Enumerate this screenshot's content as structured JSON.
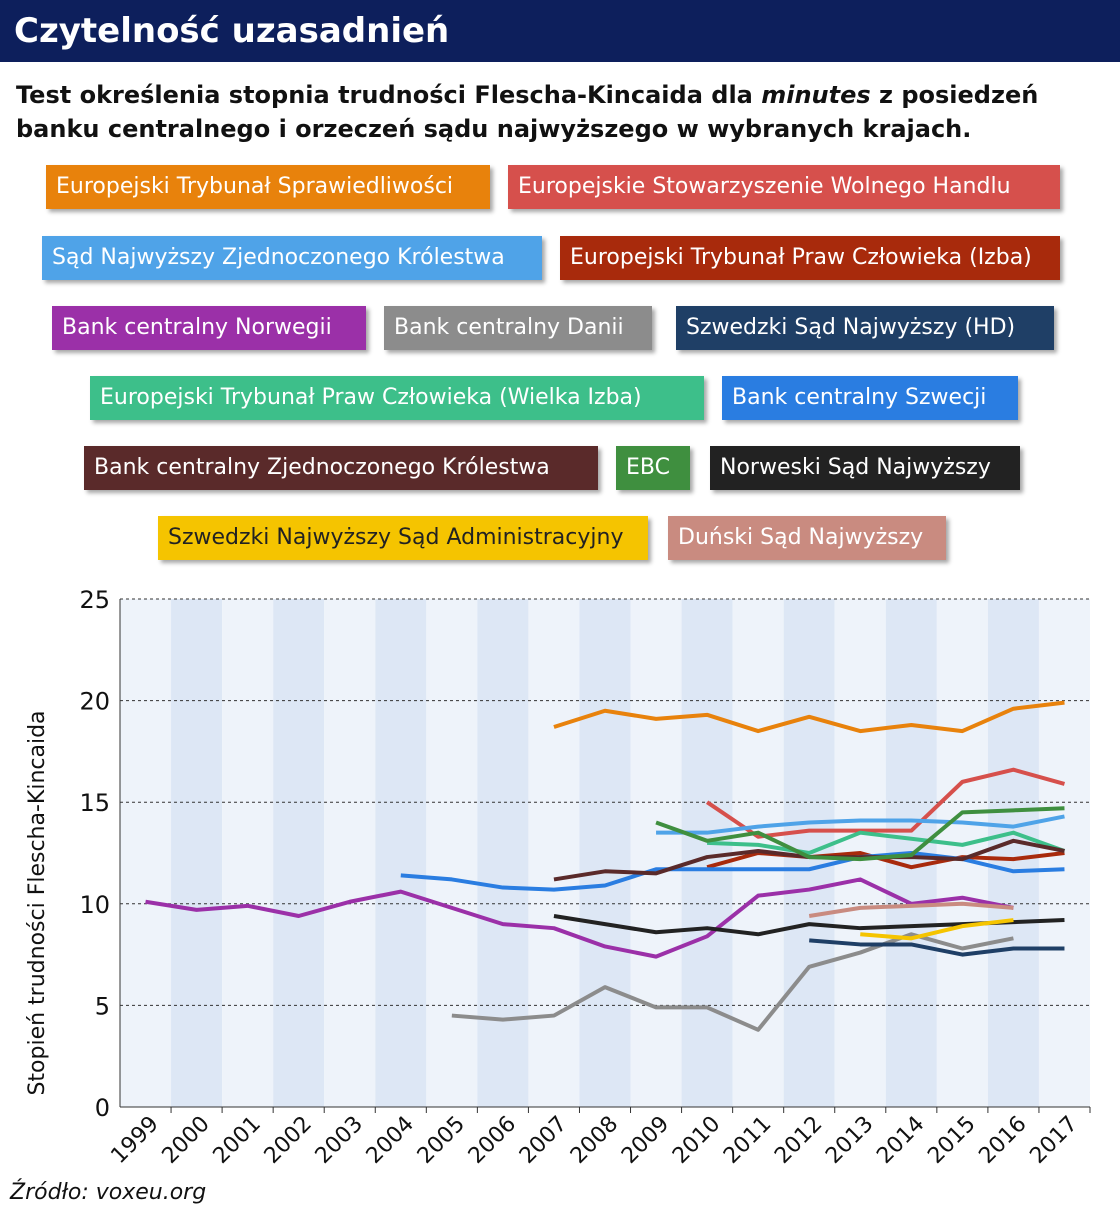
{
  "chart_data": {
    "type": "line",
    "title": "Czytelność uzasadnień",
    "subtitle": [
      "Test określenia stopnia trudności Flescha-Kincaida dla ",
      "minutes",
      " z posiedzeń banku centralnego i orzeczeń sądu najwyższego w wybranych krajach."
    ],
    "y_label": "Stopień trudności Flescha-Kincaida",
    "source": "Źródło: voxeu.org",
    "categories": [
      "1999",
      "2000",
      "2001",
      "2002",
      "2003",
      "2004",
      "2005",
      "2006",
      "2007",
      "2008",
      "2009",
      "2010",
      "2011",
      "2012",
      "2013",
      "2014",
      "2015",
      "2016",
      "2017"
    ],
    "ylim": [
      0,
      25
    ],
    "yticks": [
      0,
      5,
      10,
      15,
      20,
      25
    ],
    "grid": true,
    "series": [
      {
        "name": "Europejski Trybunał Sprawiedliwości",
        "color": "#e8820c",
        "values": [
          null,
          null,
          null,
          null,
          null,
          null,
          null,
          null,
          18.7,
          19.5,
          19.1,
          19.3,
          18.5,
          19.2,
          18.5,
          18.8,
          18.5,
          19.6,
          19.9
        ]
      },
      {
        "name": "Europejskie Stowarzyszenie Wolnego Handlu",
        "color": "#d6504c",
        "values": [
          null,
          null,
          null,
          null,
          null,
          null,
          null,
          null,
          null,
          null,
          null,
          15.0,
          13.3,
          13.6,
          13.6,
          13.6,
          16.0,
          16.6,
          15.9
        ]
      },
      {
        "name": "Sąd Najwyższy Zjednoczonego Królestwa",
        "color": "#4fa3e8",
        "values": [
          null,
          null,
          null,
          null,
          null,
          null,
          null,
          null,
          null,
          null,
          13.5,
          13.5,
          13.8,
          14.0,
          14.1,
          14.1,
          14.0,
          13.8,
          14.3
        ]
      },
      {
        "name": "Europejski Trybunał Praw Człowieka (Izba)",
        "color": "#a82a0c",
        "values": [
          null,
          null,
          null,
          null,
          null,
          null,
          null,
          null,
          null,
          null,
          null,
          11.8,
          12.5,
          12.3,
          12.5,
          11.8,
          12.3,
          12.2,
          12.5
        ]
      },
      {
        "name": "Bank centralny Norwegii",
        "color": "#9b30a8",
        "values": [
          10.1,
          9.7,
          9.9,
          9.4,
          10.1,
          10.6,
          9.8,
          9.0,
          8.8,
          7.9,
          7.4,
          8.4,
          10.4,
          10.7,
          11.2,
          10.0,
          10.3,
          9.8,
          null
        ]
      },
      {
        "name": "Bank centralny Danii",
        "color": "#8c8c8c",
        "values": [
          null,
          null,
          null,
          null,
          null,
          null,
          4.5,
          4.3,
          4.5,
          5.9,
          4.9,
          4.9,
          3.8,
          6.9,
          7.6,
          8.5,
          7.8,
          8.3,
          null
        ]
      },
      {
        "name": "Szwedzki Sąd Najwyższy (HD)",
        "color": "#1f3f66",
        "values": [
          null,
          null,
          null,
          null,
          null,
          null,
          null,
          null,
          null,
          null,
          null,
          null,
          null,
          8.2,
          8.0,
          8.0,
          7.5,
          7.8,
          7.8
        ]
      },
      {
        "name": "Europejski Trybunał Praw Człowieka (Wielka Izba)",
        "color": "#3dbf8a",
        "values": [
          null,
          null,
          null,
          null,
          null,
          null,
          null,
          null,
          null,
          null,
          null,
          13.0,
          12.9,
          12.5,
          13.5,
          13.2,
          12.9,
          13.5,
          12.6
        ]
      },
      {
        "name": "Bank centralny Szwecji",
        "color": "#2a7de1",
        "values": [
          null,
          null,
          null,
          null,
          null,
          11.4,
          11.2,
          10.8,
          10.7,
          10.9,
          11.7,
          11.7,
          11.7,
          11.7,
          12.3,
          12.5,
          12.2,
          11.6,
          11.7
        ]
      },
      {
        "name": "Bank centralny Zjednoczonego Królestwa",
        "color": "#5a2a2a",
        "values": [
          null,
          null,
          null,
          null,
          null,
          null,
          null,
          null,
          11.2,
          11.6,
          11.5,
          12.3,
          12.6,
          12.3,
          12.3,
          12.3,
          12.2,
          13.1,
          12.6
        ]
      },
      {
        "name": "EBC",
        "color": "#3f8f3f",
        "values": [
          null,
          null,
          null,
          null,
          null,
          null,
          null,
          null,
          null,
          null,
          14.0,
          13.1,
          13.5,
          12.3,
          12.2,
          12.4,
          14.5,
          14.6,
          14.7
        ]
      },
      {
        "name": "Norweski Sąd Najwyższy",
        "color": "#222222",
        "values": [
          null,
          null,
          null,
          null,
          null,
          null,
          null,
          null,
          9.4,
          9.0,
          8.6,
          8.8,
          8.5,
          9.0,
          8.8,
          8.9,
          9.0,
          9.1,
          9.2
        ]
      },
      {
        "name": "Szwedzki Najwyższy Sąd Administracyjny",
        "color": "#f5c400",
        "values": [
          null,
          null,
          null,
          null,
          null,
          null,
          null,
          null,
          null,
          null,
          null,
          null,
          null,
          null,
          8.5,
          8.3,
          8.9,
          9.2,
          null
        ]
      },
      {
        "name": "Duński Sąd Najwyższy",
        "color": "#c98b80",
        "values": [
          null,
          null,
          null,
          null,
          null,
          null,
          null,
          null,
          null,
          null,
          null,
          null,
          null,
          9.4,
          9.8,
          9.9,
          10.0,
          9.8,
          null
        ]
      }
    ]
  }
}
